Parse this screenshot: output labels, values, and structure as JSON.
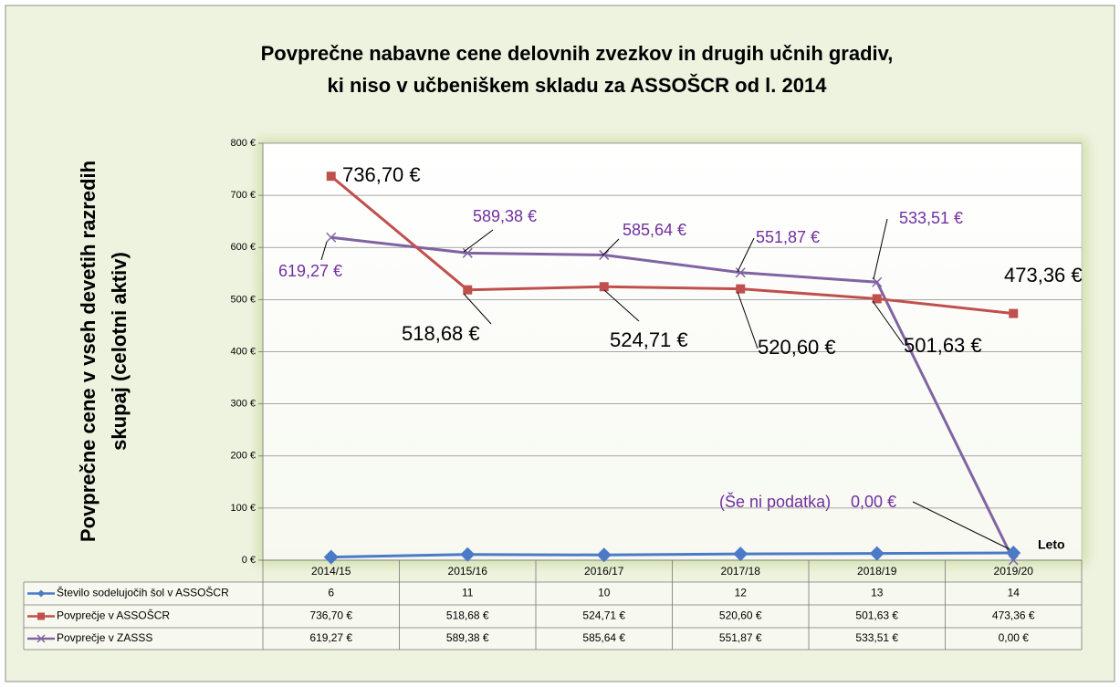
{
  "chart_data": {
    "type": "line",
    "title": [
      "Povprečne nabavne cene delovnih zvezkov in drugih učnih gradiv,",
      "ki niso v učbeniškem skladu za ASSOŠCR od l. 2014"
    ],
    "y_label": [
      "Povprečne cene v vseh devetih razredih",
      "skupaj  (celotni aktiv)"
    ],
    "x_label": "Leto",
    "annotation": "(Še ni podatka)",
    "categories": [
      "2014/15",
      "2015/16",
      "2016/17",
      "2017/18",
      "2018/19",
      "2019/20"
    ],
    "ylim": [
      0,
      800
    ],
    "yticks": [
      {
        "value": 0,
        "label": "0 €"
      },
      {
        "value": 100,
        "label": "100 €"
      },
      {
        "value": 200,
        "label": "200 €"
      },
      {
        "value": 300,
        "label": "300 €"
      },
      {
        "value": 400,
        "label": "400 €"
      },
      {
        "value": 500,
        "label": "500 €"
      },
      {
        "value": 600,
        "label": "600 €"
      },
      {
        "value": 700,
        "label": "700 €"
      },
      {
        "value": 800,
        "label": "800 €"
      }
    ],
    "grid": true,
    "series": [
      {
        "name": "Število sodelujočih šol v ASSOŠCR",
        "color": "#4a7ac8",
        "marker": "diamond",
        "values": [
          6,
          11,
          10,
          12,
          13,
          14
        ]
      },
      {
        "name": "Povprečje v ASSOŠCR",
        "color": "#c0504d",
        "marker": "square",
        "values": [
          736.7,
          518.68,
          524.71,
          520.6,
          501.63,
          473.36
        ],
        "value_labels": [
          "736,70 €",
          "518,68 €",
          "524,71 €",
          "520,60 €",
          "501,63 €",
          "473,36 €"
        ]
      },
      {
        "name": "Povprečje v ZASSS",
        "color": "#8064a2",
        "marker": "x",
        "values": [
          619.27,
          589.38,
          585.64,
          551.87,
          533.51,
          0.0
        ],
        "value_labels": [
          "619,27 €",
          "589,38 €",
          "585,64 €",
          "551,87 €",
          "533,51 €",
          "0,00 €"
        ]
      }
    ]
  }
}
